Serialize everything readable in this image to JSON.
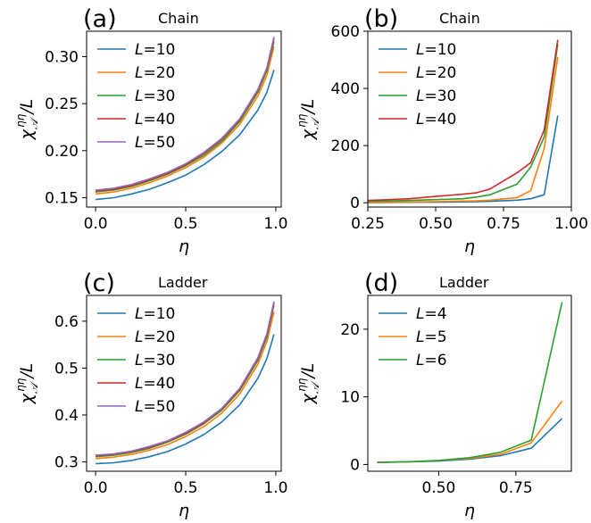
{
  "chart_data": [
    {
      "type": "line",
      "panel_label": "(a)",
      "title": "Chain",
      "xlabel": "η",
      "ylabel_main": "χ",
      "ylabel_sup": "ηη",
      "ylabel_sub": "𝒜",
      "ylabel_tail": "/L",
      "xlim": [
        -0.05,
        1.03
      ],
      "ylim": [
        0.14,
        0.327
      ],
      "xticks": [
        0.0,
        0.5,
        1.0
      ],
      "xtick_labels": [
        "0.0",
        "0.5",
        "1.0"
      ],
      "yticks": [
        0.15,
        0.2,
        0.25,
        0.3
      ],
      "ytick_labels": [
        "0.15",
        "0.20",
        "0.25",
        "0.30"
      ],
      "legend_loc": "upper-left",
      "series": [
        {
          "name": "L=10",
          "color": "#1f77b4",
          "x": [
            0.0,
            0.1,
            0.2,
            0.3,
            0.4,
            0.5,
            0.6,
            0.7,
            0.8,
            0.9,
            0.95,
            0.99
          ],
          "y": [
            0.148,
            0.15,
            0.154,
            0.159,
            0.166,
            0.174,
            0.185,
            0.199,
            0.217,
            0.243,
            0.262,
            0.286
          ]
        },
        {
          "name": "L=20",
          "color": "#ff7f0e",
          "x": [
            0.0,
            0.1,
            0.2,
            0.3,
            0.4,
            0.5,
            0.6,
            0.7,
            0.8,
            0.9,
            0.95,
            0.99
          ],
          "y": [
            0.154,
            0.156,
            0.16,
            0.166,
            0.173,
            0.182,
            0.193,
            0.208,
            0.228,
            0.258,
            0.28,
            0.311
          ]
        },
        {
          "name": "L=30",
          "color": "#2ca02c",
          "x": [
            0.0,
            0.1,
            0.2,
            0.3,
            0.4,
            0.5,
            0.6,
            0.7,
            0.8,
            0.9,
            0.95,
            0.99
          ],
          "y": [
            0.156,
            0.158,
            0.162,
            0.168,
            0.175,
            0.184,
            0.195,
            0.21,
            0.231,
            0.262,
            0.285,
            0.316
          ]
        },
        {
          "name": "L=40",
          "color": "#d62728",
          "x": [
            0.0,
            0.1,
            0.2,
            0.3,
            0.4,
            0.5,
            0.6,
            0.7,
            0.8,
            0.9,
            0.95,
            0.99
          ],
          "y": [
            0.157,
            0.159,
            0.163,
            0.169,
            0.176,
            0.185,
            0.197,
            0.212,
            0.233,
            0.264,
            0.287,
            0.319
          ]
        },
        {
          "name": "L=50",
          "color": "#9467bd",
          "x": [
            0.0,
            0.1,
            0.2,
            0.3,
            0.4,
            0.5,
            0.6,
            0.7,
            0.8,
            0.9,
            0.95,
            0.99
          ],
          "y": [
            0.158,
            0.16,
            0.164,
            0.17,
            0.177,
            0.186,
            0.198,
            0.213,
            0.234,
            0.265,
            0.288,
            0.321
          ]
        }
      ]
    },
    {
      "type": "line",
      "panel_label": "(b)",
      "title": "Chain",
      "xlabel": "η",
      "ylabel_main": "χ",
      "ylabel_sup": "ηη",
      "ylabel_sub": "𝒜",
      "ylabel_tail": "/L",
      "xlim": [
        0.25,
        1.0
      ],
      "ylim": [
        -15,
        600
      ],
      "xticks": [
        0.25,
        0.5,
        0.75,
        1.0
      ],
      "xtick_labels": [
        "0.25",
        "0.50",
        "0.75",
        "1.00"
      ],
      "yticks": [
        0,
        200,
        400,
        600
      ],
      "ytick_labels": [
        "0",
        "200",
        "400",
        "600"
      ],
      "legend_loc": "upper-left",
      "series": [
        {
          "name": "L=10",
          "color": "#1f77b4",
          "x": [
            0.25,
            0.3,
            0.4,
            0.5,
            0.6,
            0.65,
            0.7,
            0.8,
            0.85,
            0.9,
            0.95
          ],
          "y": [
            1,
            1,
            2,
            2,
            3,
            4,
            5,
            9,
            14,
            28,
            305
          ]
        },
        {
          "name": "L=20",
          "color": "#ff7f0e",
          "x": [
            0.25,
            0.3,
            0.4,
            0.5,
            0.6,
            0.65,
            0.7,
            0.8,
            0.85,
            0.9,
            0.95
          ],
          "y": [
            2,
            2,
            3,
            4,
            6,
            7,
            9,
            18,
            42,
            190,
            510
          ]
        },
        {
          "name": "L=30",
          "color": "#2ca02c",
          "x": [
            0.25,
            0.3,
            0.4,
            0.5,
            0.6,
            0.65,
            0.7,
            0.8,
            0.85,
            0.9,
            0.95
          ],
          "y": [
            5,
            6,
            8,
            11,
            14,
            20,
            28,
            65,
            125,
            230,
            555
          ]
        },
        {
          "name": "L=40",
          "color": "#d62728",
          "x": [
            0.25,
            0.3,
            0.4,
            0.5,
            0.6,
            0.65,
            0.7,
            0.8,
            0.85,
            0.9,
            0.95
          ],
          "y": [
            8,
            10,
            14,
            22,
            30,
            35,
            48,
            105,
            140,
            255,
            570
          ]
        }
      ]
    },
    {
      "type": "line",
      "panel_label": "(c)",
      "title": "Ladder",
      "xlabel": "η",
      "ylabel_main": "χ",
      "ylabel_sup": "ηη",
      "ylabel_sub": "𝒜",
      "ylabel_tail": "/L",
      "xlim": [
        -0.05,
        1.03
      ],
      "ylim": [
        0.28,
        0.655
      ],
      "xticks": [
        0.0,
        0.5,
        1.0
      ],
      "xtick_labels": [
        "0.0",
        "0.5",
        "1.0"
      ],
      "yticks": [
        0.3,
        0.4,
        0.5,
        0.6
      ],
      "ytick_labels": [
        "0.3",
        "0.4",
        "0.5",
        "0.6"
      ],
      "legend_loc": "upper-left",
      "series": [
        {
          "name": "L=10",
          "color": "#1f77b4",
          "x": [
            0.0,
            0.1,
            0.2,
            0.3,
            0.4,
            0.5,
            0.6,
            0.7,
            0.8,
            0.9,
            0.95,
            0.99
          ],
          "y": [
            0.296,
            0.298,
            0.303,
            0.311,
            0.322,
            0.338,
            0.358,
            0.385,
            0.422,
            0.478,
            0.52,
            0.572
          ]
        },
        {
          "name": "L=20",
          "color": "#ff7f0e",
          "x": [
            0.0,
            0.1,
            0.2,
            0.3,
            0.4,
            0.5,
            0.6,
            0.7,
            0.8,
            0.9,
            0.95,
            0.99
          ],
          "y": [
            0.307,
            0.31,
            0.316,
            0.325,
            0.337,
            0.354,
            0.375,
            0.404,
            0.445,
            0.508,
            0.556,
            0.62
          ]
        },
        {
          "name": "L=30",
          "color": "#2ca02c",
          "x": [
            0.0,
            0.1,
            0.2,
            0.3,
            0.4,
            0.5,
            0.6,
            0.7,
            0.8,
            0.9,
            0.95,
            0.99
          ],
          "y": [
            0.311,
            0.314,
            0.32,
            0.329,
            0.342,
            0.359,
            0.381,
            0.41,
            0.452,
            0.516,
            0.566,
            0.634
          ]
        },
        {
          "name": "L=40",
          "color": "#d62728",
          "x": [
            0.0,
            0.1,
            0.2,
            0.3,
            0.4,
            0.5,
            0.6,
            0.7,
            0.8,
            0.9,
            0.95,
            0.99
          ],
          "y": [
            0.313,
            0.316,
            0.322,
            0.331,
            0.344,
            0.361,
            0.383,
            0.413,
            0.455,
            0.52,
            0.57,
            0.639
          ]
        },
        {
          "name": "L=50",
          "color": "#9467bd",
          "x": [
            0.0,
            0.1,
            0.2,
            0.3,
            0.4,
            0.5,
            0.6,
            0.7,
            0.8,
            0.9,
            0.95,
            0.99
          ],
          "y": [
            0.314,
            0.317,
            0.323,
            0.333,
            0.345,
            0.363,
            0.385,
            0.414,
            0.457,
            0.522,
            0.573,
            0.642
          ]
        }
      ]
    },
    {
      "type": "line",
      "panel_label": "(d)",
      "title": "Ladder",
      "xlabel": "η",
      "ylabel_main": "χ",
      "ylabel_sup": "ηη",
      "ylabel_sub": "𝒜",
      "ylabel_tail": "/L",
      "xlim": [
        0.27,
        0.93
      ],
      "ylim": [
        -1,
        25
      ],
      "xticks": [
        0.5,
        0.75
      ],
      "xtick_labels": [
        "0.50",
        "0.75"
      ],
      "yticks": [
        0,
        10,
        20
      ],
      "ytick_labels": [
        "0",
        "10",
        "20"
      ],
      "legend_loc": "upper-left",
      "series": [
        {
          "name": "L=4",
          "color": "#1f77b4",
          "x": [
            0.3,
            0.4,
            0.5,
            0.6,
            0.7,
            0.8,
            0.9
          ],
          "y": [
            0.3,
            0.4,
            0.5,
            0.8,
            1.3,
            2.4,
            6.8
          ]
        },
        {
          "name": "L=5",
          "color": "#ff7f0e",
          "x": [
            0.3,
            0.4,
            0.5,
            0.6,
            0.7,
            0.8,
            0.9
          ],
          "y": [
            0.3,
            0.4,
            0.6,
            0.9,
            1.5,
            3.2,
            9.4
          ]
        },
        {
          "name": "L=6",
          "color": "#2ca02c",
          "x": [
            0.3,
            0.4,
            0.5,
            0.6,
            0.7,
            0.8,
            0.9
          ],
          "y": [
            0.3,
            0.4,
            0.6,
            1.0,
            1.8,
            3.6,
            24.0
          ]
        }
      ]
    }
  ]
}
